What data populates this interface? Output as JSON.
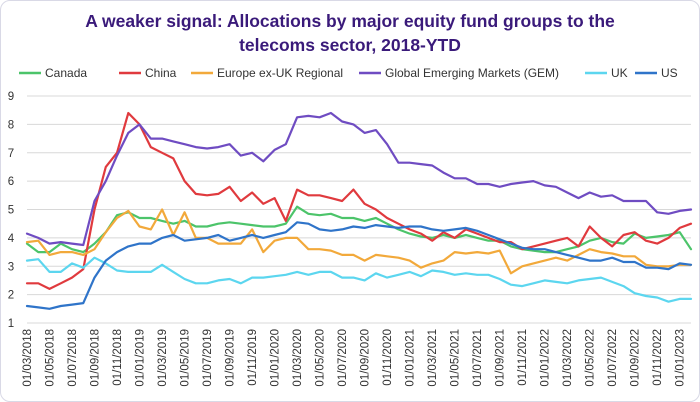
{
  "chart_data": {
    "type": "line",
    "title_lines": [
      "A weaker signal: Allocations by major equity fund groups to the",
      "telecoms sector, 2018-YTD"
    ],
    "xlabel": "",
    "ylabel": "",
    "ylim": [
      1,
      9
    ],
    "yticks": [
      1,
      2,
      3,
      4,
      5,
      6,
      7,
      8,
      9
    ],
    "grid": "horizontal",
    "legend": "top",
    "x_ticks": [
      "01/03/2018",
      "01/05/2018",
      "01/07/2018",
      "01/09/2018",
      "01/11/2018",
      "01/01/2019",
      "01/03/2019",
      "01/05/2019",
      "01/07/2019",
      "01/09/2019",
      "01/11/2019",
      "01/01/2020",
      "01/03/2020",
      "01/05/2020",
      "01/07/2020",
      "01/09/2020",
      "01/11/2020",
      "01/01/2021",
      "01/03/2021",
      "01/05/2021",
      "01/07/2021",
      "01/09/2021",
      "01/11/2021",
      "01/01/2022",
      "01/03/2022",
      "01/05/2022",
      "01/07/2022",
      "01/09/2022",
      "01/11/2022",
      "01/01/2023"
    ],
    "x_months": [
      "2018-03",
      "2018-04",
      "2018-05",
      "2018-06",
      "2018-07",
      "2018-08",
      "2018-09",
      "2018-10",
      "2018-11",
      "2018-12",
      "2019-01",
      "2019-02",
      "2019-03",
      "2019-04",
      "2019-05",
      "2019-06",
      "2019-07",
      "2019-08",
      "2019-09",
      "2019-10",
      "2019-11",
      "2019-12",
      "2020-01",
      "2020-02",
      "2020-03",
      "2020-04",
      "2020-05",
      "2020-06",
      "2020-07",
      "2020-08",
      "2020-09",
      "2020-10",
      "2020-11",
      "2020-12",
      "2021-01",
      "2021-02",
      "2021-03",
      "2021-04",
      "2021-05",
      "2021-06",
      "2021-07",
      "2021-08",
      "2021-09",
      "2021-10",
      "2021-11",
      "2021-12",
      "2022-01",
      "2022-02",
      "2022-03",
      "2022-04",
      "2022-05",
      "2022-06",
      "2022-07",
      "2022-08",
      "2022-09",
      "2022-10",
      "2022-11",
      "2022-12",
      "2023-01",
      "2023-02"
    ],
    "series": [
      {
        "name": "Canada",
        "color": "#4cc46a",
        "values": [
          3.8,
          3.5,
          3.5,
          3.8,
          3.6,
          3.5,
          3.8,
          4.2,
          4.8,
          4.9,
          4.7,
          4.7,
          4.6,
          4.5,
          4.6,
          4.4,
          4.4,
          4.5,
          4.55,
          4.5,
          4.45,
          4.4,
          4.4,
          4.5,
          5.1,
          4.85,
          4.8,
          4.85,
          4.7,
          4.7,
          4.6,
          4.7,
          4.5,
          4.3,
          4.15,
          4.05,
          4.0,
          4.1,
          4.0,
          4.1,
          4.0,
          3.9,
          3.9,
          3.7,
          3.6,
          3.55,
          3.5,
          3.5,
          3.6,
          3.7,
          3.9,
          4.0,
          3.85,
          3.8,
          4.15,
          4.0,
          4.05,
          4.1,
          4.2,
          3.6
        ]
      },
      {
        "name": "China",
        "color": "#e03a3e",
        "values": [
          2.4,
          2.4,
          2.2,
          2.4,
          2.6,
          2.9,
          5.0,
          6.5,
          7.0,
          8.4,
          8.0,
          7.2,
          7.0,
          6.8,
          6.0,
          5.55,
          5.5,
          5.55,
          5.8,
          5.3,
          5.6,
          5.2,
          5.4,
          4.6,
          5.7,
          5.5,
          5.5,
          5.4,
          5.3,
          5.7,
          5.2,
          5.0,
          4.7,
          4.5,
          4.3,
          4.15,
          3.9,
          4.2,
          4.0,
          4.3,
          4.15,
          4.0,
          3.85,
          3.85,
          3.6,
          3.7,
          3.8,
          3.9,
          4.0,
          3.7,
          4.4,
          4.0,
          3.7,
          4.1,
          4.2,
          3.9,
          3.8,
          4.0,
          4.35,
          4.5
        ]
      },
      {
        "name": "Europe ex-UK Regional",
        "color": "#f2a93b",
        "values": [
          3.85,
          3.9,
          3.4,
          3.5,
          3.5,
          3.4,
          3.6,
          4.2,
          4.7,
          4.95,
          4.4,
          4.3,
          5.0,
          4.1,
          4.9,
          4.0,
          4.0,
          3.8,
          3.8,
          3.8,
          4.3,
          3.5,
          3.9,
          4.0,
          4.0,
          3.6,
          3.6,
          3.55,
          3.4,
          3.4,
          3.2,
          3.4,
          3.35,
          3.3,
          3.2,
          2.95,
          3.1,
          3.2,
          3.5,
          3.45,
          3.5,
          3.45,
          3.55,
          2.75,
          3.0,
          3.1,
          3.2,
          3.3,
          3.2,
          3.4,
          3.6,
          3.5,
          3.45,
          3.35,
          3.35,
          3.05,
          3.0,
          3.0,
          3.05,
          3.05
        ]
      },
      {
        "name": "Global Emerging Markets (GEM)",
        "color": "#6f4cc2",
        "values": [
          4.15,
          4.0,
          3.8,
          3.85,
          3.8,
          3.75,
          5.3,
          6.0,
          6.9,
          7.7,
          8.0,
          7.5,
          7.5,
          7.4,
          7.3,
          7.2,
          7.15,
          7.2,
          7.3,
          6.9,
          7.0,
          6.7,
          7.1,
          7.3,
          8.25,
          8.3,
          8.25,
          8.4,
          8.1,
          8.0,
          7.7,
          7.8,
          7.3,
          6.65,
          6.65,
          6.6,
          6.55,
          6.3,
          6.1,
          6.1,
          5.9,
          5.9,
          5.8,
          5.9,
          5.95,
          6.0,
          5.85,
          5.8,
          5.6,
          5.4,
          5.6,
          5.45,
          5.5,
          5.3,
          5.3,
          5.3,
          4.9,
          4.85,
          4.95,
          5.0
        ]
      },
      {
        "name": "UK",
        "color": "#5cd6ef",
        "values": [
          3.2,
          3.25,
          2.8,
          2.8,
          3.1,
          2.95,
          3.3,
          3.1,
          2.85,
          2.8,
          2.8,
          2.8,
          3.05,
          2.8,
          2.55,
          2.4,
          2.4,
          2.5,
          2.55,
          2.4,
          2.6,
          2.6,
          2.65,
          2.7,
          2.8,
          2.7,
          2.8,
          2.8,
          2.6,
          2.6,
          2.5,
          2.75,
          2.6,
          2.7,
          2.8,
          2.65,
          2.85,
          2.8,
          2.7,
          2.75,
          2.7,
          2.7,
          2.55,
          2.35,
          2.3,
          2.4,
          2.5,
          2.45,
          2.4,
          2.5,
          2.55,
          2.6,
          2.45,
          2.3,
          2.05,
          1.95,
          1.9,
          1.75,
          1.85,
          1.85
        ]
      },
      {
        "name": "US",
        "color": "#2f74c9",
        "values": [
          1.6,
          1.55,
          1.5,
          1.6,
          1.65,
          1.7,
          2.6,
          3.2,
          3.5,
          3.7,
          3.8,
          3.8,
          4.0,
          4.1,
          3.9,
          3.95,
          4.0,
          4.1,
          3.9,
          4.0,
          4.1,
          4.0,
          4.1,
          4.2,
          4.55,
          4.5,
          4.3,
          4.25,
          4.3,
          4.4,
          4.35,
          4.45,
          4.4,
          4.35,
          4.4,
          4.4,
          4.3,
          4.25,
          4.3,
          4.35,
          4.25,
          4.1,
          3.95,
          3.8,
          3.65,
          3.6,
          3.6,
          3.5,
          3.4,
          3.3,
          3.2,
          3.2,
          3.3,
          3.15,
          3.15,
          2.95,
          2.95,
          2.9,
          3.1,
          3.05
        ]
      }
    ]
  }
}
